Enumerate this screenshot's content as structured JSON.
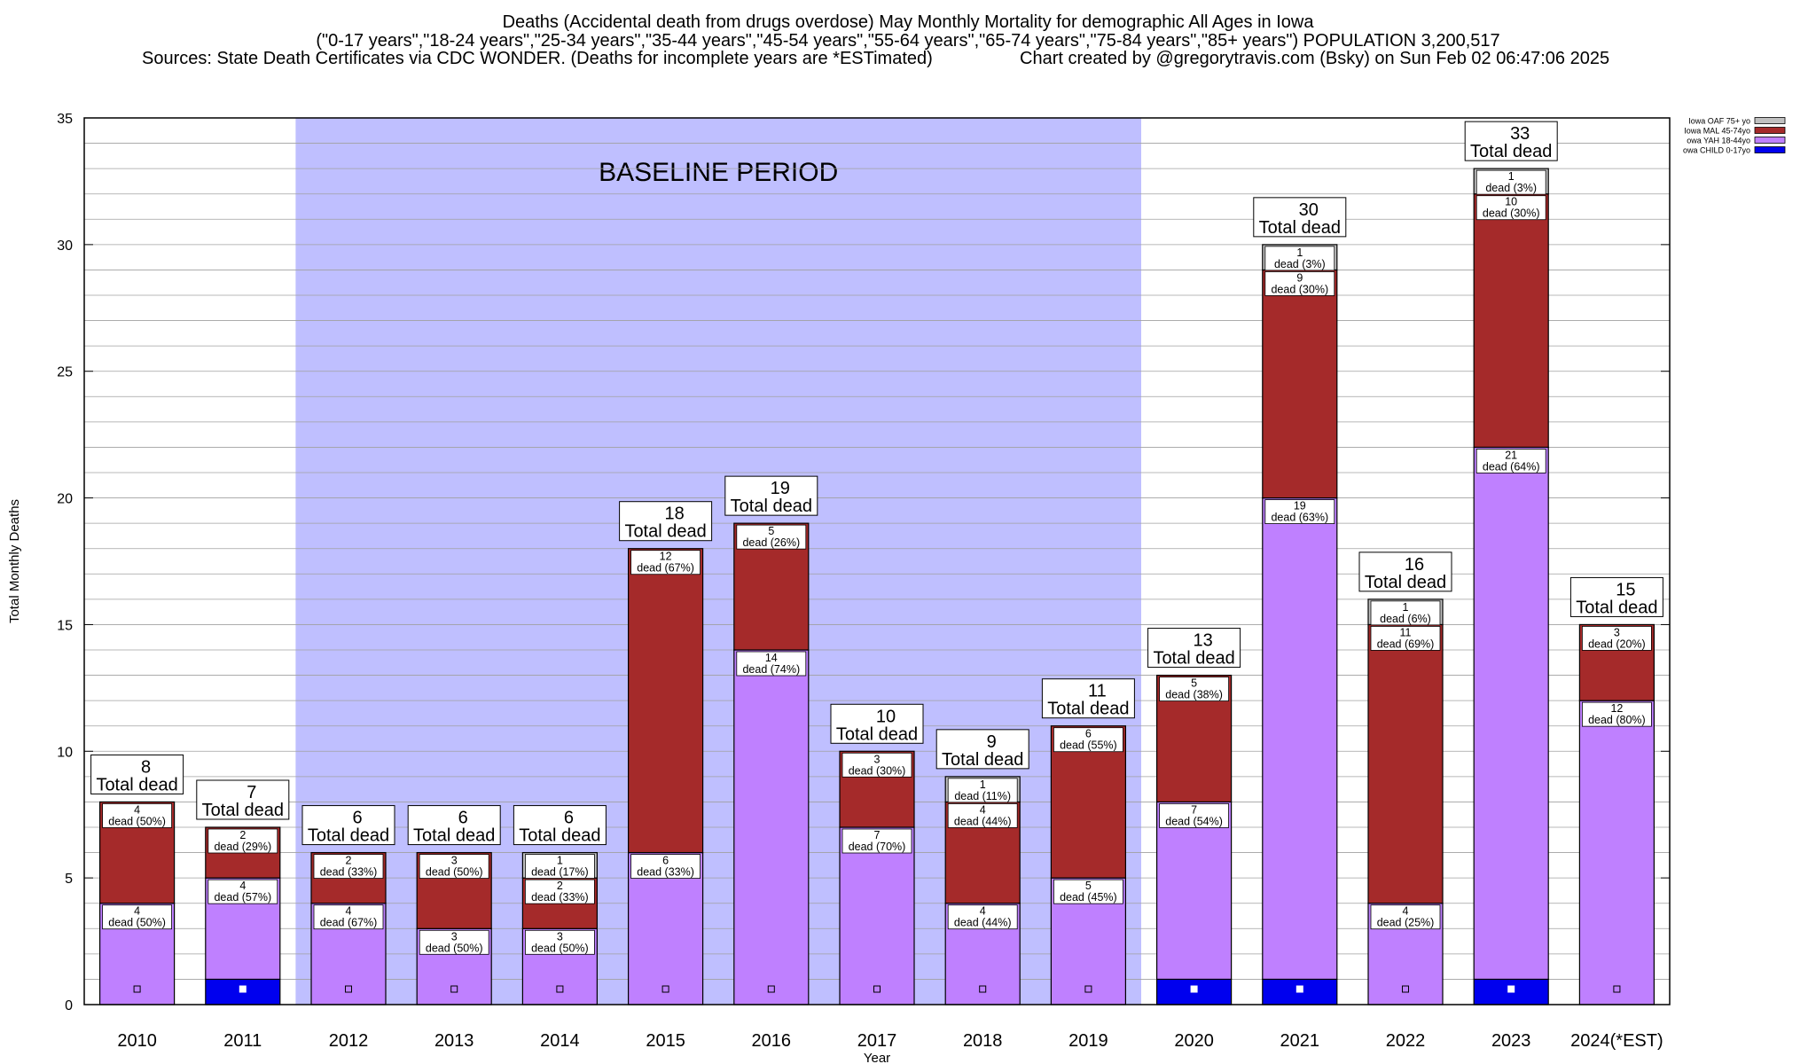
{
  "title": {
    "line1": "Deaths (Accidental death from drugs overdose) May Monthly Mortality for demographic All Ages in Iowa",
    "line2": "(\"0-17 years\",\"18-24 years\",\"25-34 years\",\"35-44 years\",\"45-54 years\",\"55-64 years\",\"65-74 years\",\"75-84 years\",\"85+ years\") POPULATION 3,200,517",
    "line3_left": "Sources: State Death Certificates via CDC WONDER. (Deaths for incomplete years are *ESTimated)",
    "line3_right": "Chart created by @gregorytravis.com (Bsky) on Sun Feb 02 06:47:06 2025"
  },
  "chart_data": {
    "type": "bar",
    "stacked": true,
    "xlabel": "Year",
    "ylabel": "Total Monthly Deaths",
    "ylim": [
      0,
      35
    ],
    "yticks": [
      0,
      5,
      10,
      15,
      20,
      25,
      30,
      35
    ],
    "grid": true,
    "legend_position": "top-right",
    "categories": [
      "2010",
      "2011",
      "2012",
      "2013",
      "2014",
      "2015",
      "2016",
      "2017",
      "2018",
      "2019",
      "2020",
      "2021",
      "2022",
      "2023",
      "2024(*EST)"
    ],
    "series": [
      {
        "name": "owa CHILD 0-17yo",
        "color": "#0000ee",
        "values": [
          0,
          1,
          0,
          0,
          0,
          0,
          0,
          0,
          0,
          0,
          1,
          1,
          0,
          1,
          0
        ]
      },
      {
        "name": "owa YAH 18-44yo",
        "color": "#bf80ff",
        "values": [
          4,
          4,
          4,
          3,
          3,
          6,
          14,
          7,
          4,
          5,
          7,
          19,
          4,
          21,
          12
        ]
      },
      {
        "name": "Iowa MAL 45-74yo",
        "color": "#a52a2a",
        "values": [
          4,
          2,
          2,
          3,
          2,
          12,
          5,
          3,
          4,
          6,
          5,
          9,
          11,
          10,
          3
        ]
      },
      {
        "name": "Iowa OAF 75+ yo",
        "color": "#c0c0c0",
        "values": [
          0,
          0,
          0,
          0,
          1,
          0,
          0,
          0,
          1,
          0,
          0,
          1,
          1,
          1,
          0
        ]
      }
    ],
    "segment_labels": [
      [
        null,
        [
          "4",
          "dead (50%)"
        ],
        [
          "4",
          "dead (50%)"
        ],
        null
      ],
      [
        null,
        [
          "4",
          "dead (57%)"
        ],
        [
          "2",
          "dead (29%)"
        ],
        null
      ],
      [
        null,
        [
          "4",
          "dead (67%)"
        ],
        [
          "2",
          "dead (33%)"
        ],
        null
      ],
      [
        null,
        [
          "3",
          "dead (50%)"
        ],
        [
          "3",
          "dead (50%)"
        ],
        null
      ],
      [
        null,
        [
          "3",
          "dead (50%)"
        ],
        [
          "2",
          "dead (33%)"
        ],
        [
          "1",
          "dead (17%)"
        ]
      ],
      [
        null,
        [
          "6",
          "dead (33%)"
        ],
        [
          "12",
          "dead (67%)"
        ],
        null
      ],
      [
        null,
        [
          "14",
          "dead (74%)"
        ],
        [
          "5",
          "dead (26%)"
        ],
        null
      ],
      [
        null,
        [
          "7",
          "dead (70%)"
        ],
        [
          "3",
          "dead (30%)"
        ],
        null
      ],
      [
        null,
        [
          "4",
          "dead (44%)"
        ],
        [
          "4",
          "dead (44%)"
        ],
        [
          "1",
          "dead (11%)"
        ]
      ],
      [
        null,
        [
          "5",
          "dead (45%)"
        ],
        [
          "6",
          "dead (55%)"
        ],
        null
      ],
      [
        null,
        [
          "7",
          "dead (54%)"
        ],
        [
          "5",
          "dead (38%)"
        ],
        null
      ],
      [
        null,
        [
          "19",
          "dead (63%)"
        ],
        [
          "9",
          "dead (30%)"
        ],
        [
          "1",
          "dead (3%)"
        ]
      ],
      [
        null,
        [
          "4",
          "dead (25%)"
        ],
        [
          "11",
          "dead (69%)"
        ],
        [
          "1",
          "dead (6%)"
        ]
      ],
      [
        null,
        [
          "21",
          "dead (64%)"
        ],
        [
          "10",
          "dead (30%)"
        ],
        [
          "1",
          "dead (3%)"
        ]
      ],
      [
        null,
        [
          "12",
          "dead (80%)"
        ],
        [
          "3",
          "dead (20%)"
        ],
        null
      ]
    ],
    "totals": [
      "8",
      "7",
      "6",
      "6",
      "6",
      "18",
      "19",
      "10",
      "9",
      "11",
      "13",
      "30",
      "16",
      "33",
      "15"
    ],
    "total_suffix": "Total dead",
    "annotation": {
      "text": "BASELINE PERIOD",
      "from_category": "2012",
      "to_category": "2019",
      "color": "#bfbfff"
    }
  }
}
